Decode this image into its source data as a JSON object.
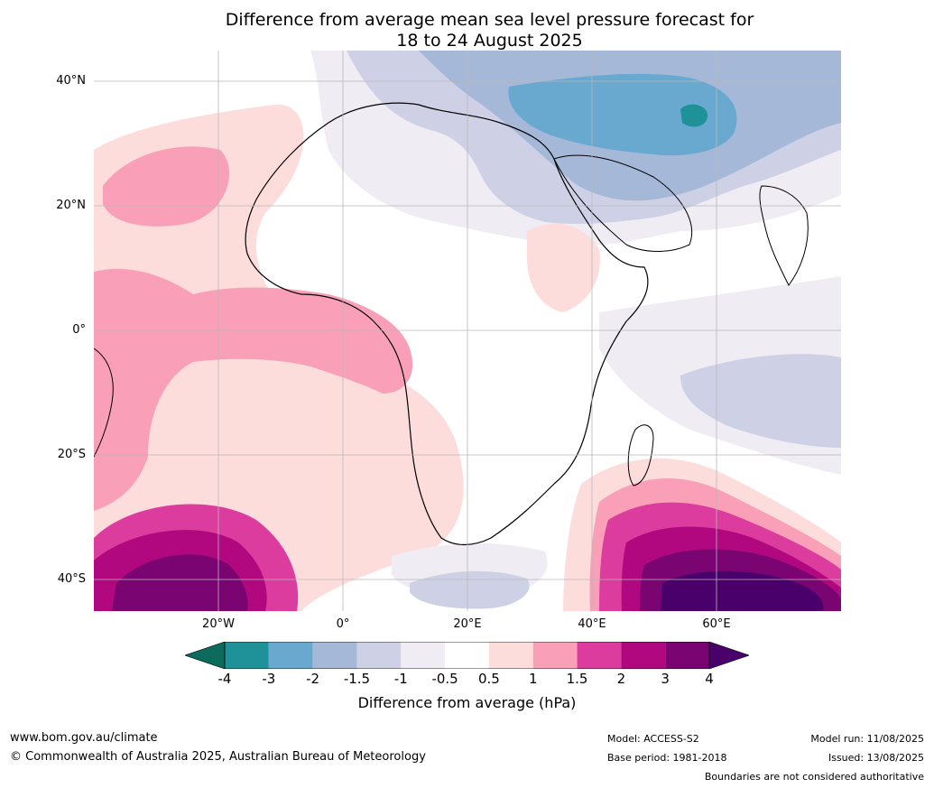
{
  "title_line1": "Difference from average mean sea level pressure forecast for",
  "title_line2": "18 to 24 August 2025",
  "lat_labels": [
    "40°N",
    "20°N",
    "0°",
    "20°S",
    "40°S"
  ],
  "lon_labels": [
    "20°W",
    "0°",
    "20°E",
    "40°E",
    "60°E"
  ],
  "colorbar": {
    "ticks": [
      "-4",
      "-3",
      "-2",
      "-1.5",
      "-1",
      "-0.5",
      "0.5",
      "1",
      "1.5",
      "2",
      "3",
      "4"
    ],
    "colors": [
      "#0d6b5e",
      "#1f9199",
      "#6aa9cf",
      "#a6b8d8",
      "#ced1e6",
      "#efecf3",
      "#ffffff",
      "#fddcdc",
      "#f9a0b8",
      "#dc3c9e",
      "#b2087f",
      "#7a0472",
      "#4a006a"
    ],
    "label": "Difference from average (hPa)"
  },
  "footer": {
    "website": "www.bom.gov.au/climate",
    "copyright": "© Commonwealth of Australia 2025, Australian Bureau of Meteorology",
    "model": "Model: ACCESS-S2",
    "base_period": "Base period: 1981-2018",
    "model_run": "Model run: 11/08/2025",
    "issued": "Issued: 13/08/2025",
    "disclaimer": "Boundaries are not considered authoritative"
  }
}
